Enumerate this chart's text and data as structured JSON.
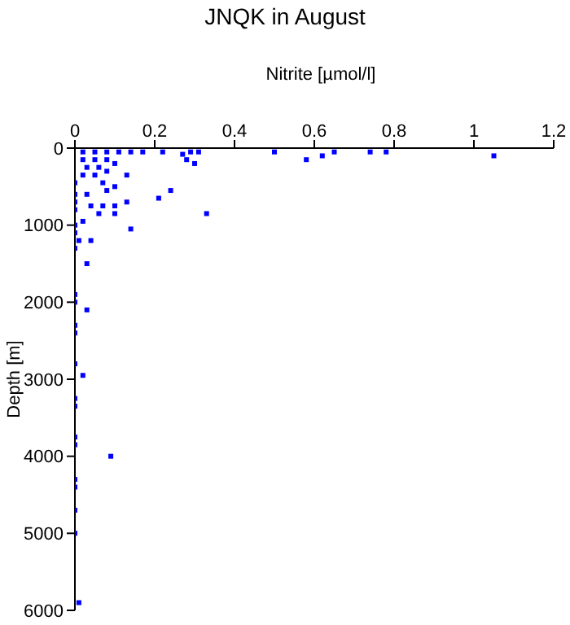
{
  "chart_data": {
    "type": "scatter",
    "title": "JNQK in August",
    "xlabel": "Nitrite [µmol/l]",
    "ylabel": "Depth [m]",
    "x": [
      0.02,
      0.05,
      0.08,
      0.11,
      0.14,
      0.17,
      0.22,
      0.27,
      0.28,
      0.29,
      0.3,
      0.31,
      0.5,
      0.58,
      0.62,
      0.65,
      0.74,
      0.78,
      1.05,
      0.02,
      0.05,
      0.08,
      0.03,
      0.06,
      0.02,
      0.05,
      0,
      0,
      0,
      0,
      0,
      0,
      0,
      0.13,
      0.24,
      0.21,
      0.13,
      0.1,
      0.33,
      0.14,
      0.04,
      0.03,
      0.03,
      0.1,
      0.08,
      0.08,
      0.1,
      0.1,
      0.06,
      0.04,
      0.03,
      0.07,
      0.07,
      0.02,
      0.01,
      0,
      0,
      0,
      0,
      0,
      0.02,
      0,
      0,
      0,
      0,
      0.09,
      0,
      0,
      0,
      0,
      0.01
    ],
    "values": [
      50,
      50,
      50,
      50,
      50,
      50,
      50,
      80,
      150,
      50,
      200,
      50,
      50,
      150,
      100,
      50,
      50,
      50,
      100,
      150,
      150,
      150,
      250,
      250,
      350,
      350,
      450,
      600,
      700,
      800,
      1000,
      1100,
      1300,
      350,
      550,
      650,
      700,
      500,
      850,
      1050,
      1200,
      1500,
      2100,
      200,
      300,
      550,
      750,
      850,
      850,
      750,
      600,
      450,
      750,
      950,
      1200,
      1900,
      2000,
      2300,
      2400,
      2800,
      2950,
      3250,
      3350,
      3750,
      3850,
      4000,
      4300,
      4400,
      4700,
      5000,
      5900
    ],
    "color": "#0000ff",
    "marker": "square",
    "xlim": [
      0,
      1.2
    ],
    "xticks": [
      0,
      0.2,
      0.4,
      0.6,
      0.8,
      1,
      1.2
    ],
    "ylim": [
      6000,
      0
    ],
    "yticks": [
      0,
      1000,
      2000,
      3000,
      4000,
      5000,
      6000
    ],
    "grid": false
  }
}
